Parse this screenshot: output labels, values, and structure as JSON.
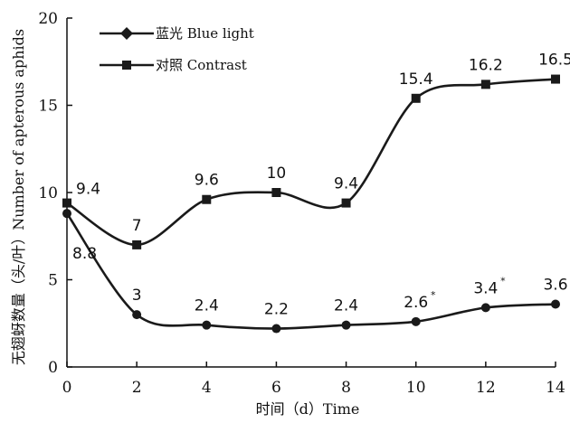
{
  "chart_data": {
    "type": "line",
    "xlabel": "时间（d）Time",
    "ylabel": "无翅蚜数量（头/叶）Number of apterous aphids",
    "x": [
      0,
      2,
      4,
      6,
      8,
      10,
      12,
      14
    ],
    "xlim": [
      0,
      14
    ],
    "ylim": [
      0,
      20
    ],
    "xticks": [
      0,
      2,
      4,
      6,
      8,
      10,
      12,
      14
    ],
    "yticks": [
      0,
      5,
      10,
      15,
      20
    ],
    "grid": false,
    "legend_position": "top-left",
    "series": [
      {
        "name": "蓝光 Blue light",
        "marker": "diamond",
        "color": "#1a1a1a",
        "values": [
          8.8,
          3,
          2.4,
          2.2,
          2.4,
          2.6,
          3.4,
          3.6
        ],
        "labels": [
          "8.8",
          "3",
          "2.4",
          "2.2",
          "2.4",
          "2.6",
          "3.4",
          "3.6"
        ],
        "significance": [
          "",
          "",
          "",
          "",
          "",
          "*",
          "*",
          "*"
        ]
      },
      {
        "name": "对照 Contrast",
        "marker": "square",
        "color": "#1a1a1a",
        "values": [
          9.4,
          7,
          9.6,
          10,
          9.4,
          15.4,
          16.2,
          16.5
        ],
        "labels": [
          "9.4",
          "7",
          "9.6",
          "10",
          "9.4",
          "15.4",
          "16.2",
          "16.5"
        ],
        "significance": [
          "",
          "",
          "",
          "",
          "",
          "",
          "",
          ""
        ]
      }
    ]
  }
}
